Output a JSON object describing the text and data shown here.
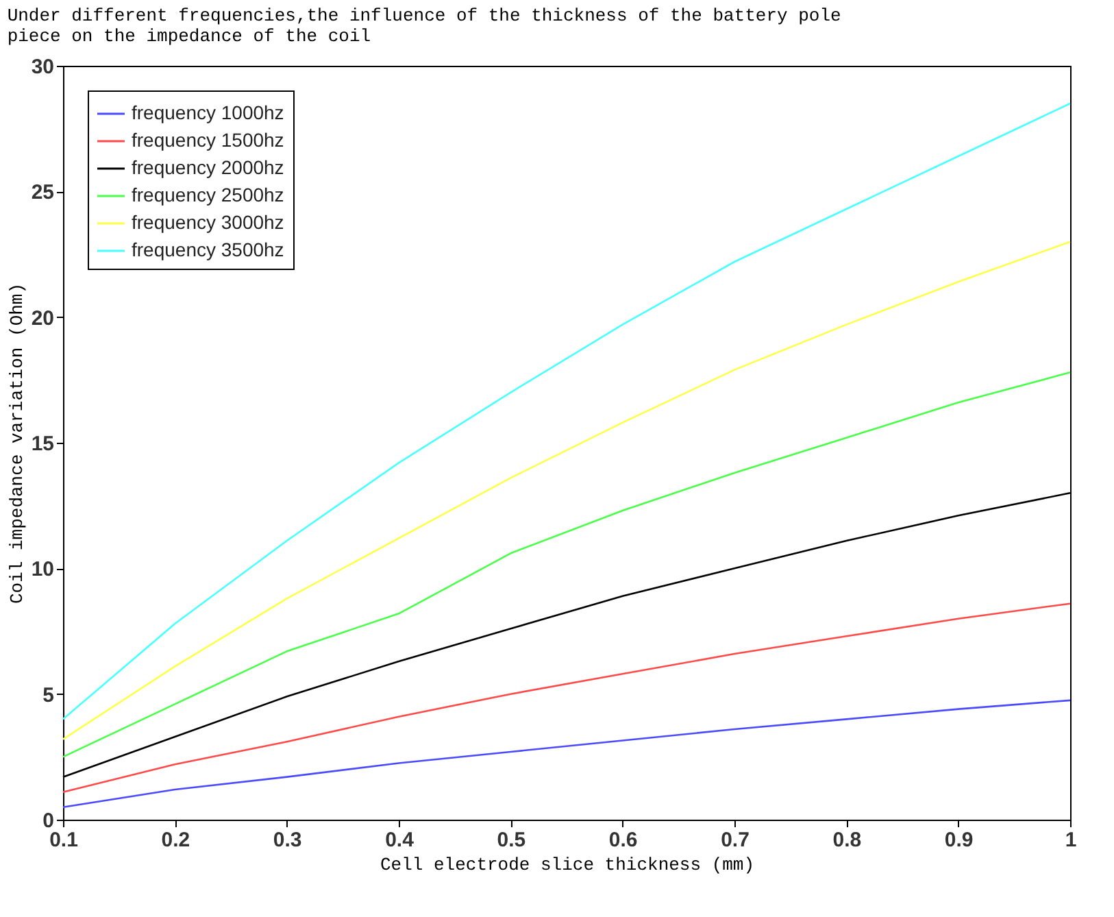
{
  "chart_data": {
    "type": "line",
    "title": "Under different frequencies,the influence of the thickness of the battery pole piece on the impedance of the coil",
    "xlabel": "Cell electrode slice thickness (mm)",
    "ylabel": "Coil impedance variation (Ohm)",
    "x": [
      0.1,
      0.2,
      0.3,
      0.4,
      0.5,
      0.6,
      0.7,
      0.8,
      0.9,
      1.0
    ],
    "series": [
      {
        "name": "frequency 1000hz",
        "color": "#4a4aff",
        "values": [
          0.5,
          1.2,
          1.7,
          2.25,
          2.7,
          3.15,
          3.6,
          4.0,
          4.4,
          4.75
        ]
      },
      {
        "name": "frequency 1500hz",
        "color": "#ff4a4a",
        "values": [
          1.1,
          2.2,
          3.1,
          4.1,
          5.0,
          5.8,
          6.6,
          7.3,
          8.0,
          8.6
        ]
      },
      {
        "name": "frequency 2000hz",
        "color": "#000000",
        "values": [
          1.7,
          3.3,
          4.9,
          6.3,
          7.6,
          8.9,
          10.0,
          11.1,
          12.1,
          13.0
        ]
      },
      {
        "name": "frequency 2500hz",
        "color": "#4aff4a",
        "values": [
          2.5,
          4.6,
          6.7,
          8.2,
          10.6,
          12.3,
          13.8,
          15.2,
          16.6,
          17.8
        ]
      },
      {
        "name": "frequency 3000hz",
        "color": "#ffff4a",
        "values": [
          3.2,
          6.1,
          8.8,
          11.2,
          13.6,
          15.8,
          17.9,
          19.7,
          21.4,
          23.0
        ]
      },
      {
        "name": "frequency 3500hz",
        "color": "#4affff",
        "values": [
          4.0,
          7.8,
          11.1,
          14.2,
          17.0,
          19.7,
          22.2,
          24.3,
          26.4,
          28.5
        ]
      }
    ],
    "xlim": [
      0.1,
      1
    ],
    "xticks": [
      0.1,
      0.2,
      0.3,
      0.4,
      0.5,
      0.6,
      0.7,
      0.8,
      0.9,
      1
    ],
    "ylim": [
      0,
      30
    ],
    "yticks": [
      0,
      5,
      10,
      15,
      20,
      25,
      30
    ],
    "grid": false,
    "legend": "top left",
    "marker": "none",
    "line_style": "solid"
  }
}
